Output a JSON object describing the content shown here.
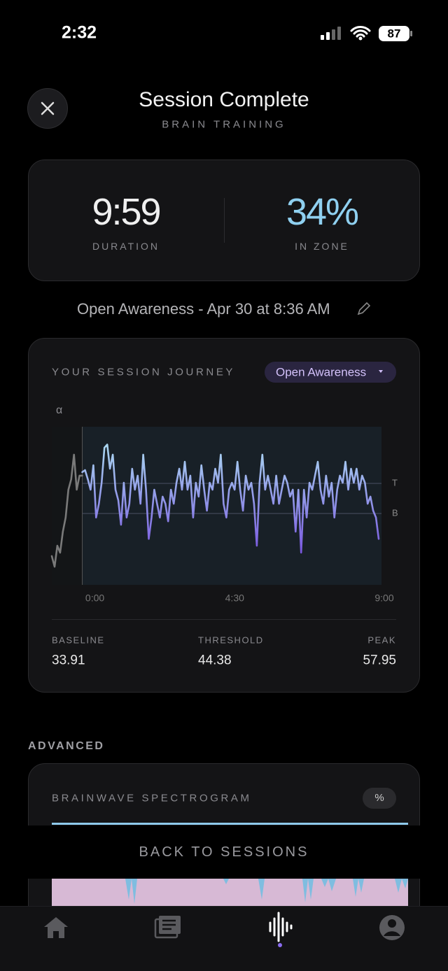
{
  "status_bar": {
    "time": "2:32",
    "battery": "87"
  },
  "header": {
    "title": "Session Complete",
    "subtitle": "BRAIN TRAINING"
  },
  "summary": {
    "duration": {
      "value": "9:59",
      "label": "DURATION"
    },
    "in_zone": {
      "value": "34%",
      "label": "IN ZONE"
    }
  },
  "session_info": "Open Awareness - Apr 30 at 8:36 AM",
  "journey": {
    "title": "YOUR SESSION JOURNEY",
    "mode": "Open Awareness",
    "stats": [
      {
        "label": "BASELINE",
        "value": 33.91
      },
      {
        "label": "THRESHOLD",
        "value": 44.38
      },
      {
        "label": "PEAK",
        "value": 57.95
      }
    ]
  },
  "chart_data": {
    "type": "line",
    "ylabel": "α",
    "threshold_label": "T",
    "baseline_label": "B",
    "xlim": [
      -55,
      540
    ],
    "ylim": [
      9.1,
      64.1
    ],
    "xticks": [
      {
        "value": 0,
        "label": "0:00"
      },
      {
        "value": 270,
        "label": "4:30"
      },
      {
        "value": 540,
        "label": "9:00"
      }
    ],
    "series": [
      {
        "color": "#7a7a7a",
        "x": [
          -55,
          -50,
          -45,
          -40,
          -35,
          -30,
          -25,
          -20,
          -15,
          -10,
          -5,
          0
        ],
        "values": [
          19.1,
          15.4,
          22.7,
          20.3,
          27.6,
          32.5,
          42.2,
          45.8,
          54.4,
          42.2,
          47.1,
          47.1
        ]
      },
      {
        "colors": [
          "#acdcf2",
          "#7a58e0"
        ],
        "x": [
          0,
          5,
          10,
          15,
          20,
          25,
          30,
          35,
          40,
          45,
          50,
          55,
          60,
          65,
          70,
          75,
          80,
          85,
          90,
          95,
          100,
          105,
          110,
          115,
          120,
          125,
          130,
          135,
          140,
          145,
          150,
          155,
          160,
          165,
          170,
          175,
          180,
          185,
          190,
          195,
          200,
          205,
          210,
          215,
          220,
          225,
          230,
          235,
          240,
          245,
          250,
          255,
          260,
          265,
          270,
          275,
          280,
          285,
          290,
          295,
          300,
          305,
          310,
          315,
          320,
          325,
          330,
          335,
          340,
          345,
          350,
          355,
          360,
          365,
          370,
          375,
          380,
          385,
          390,
          395,
          400,
          405,
          410,
          415,
          420,
          425,
          430,
          435,
          440,
          445,
          450,
          455,
          460,
          465,
          470,
          475,
          480,
          485,
          490,
          495,
          500,
          505,
          510,
          515,
          520,
          525,
          530,
          535
        ],
        "values": [
          48.3,
          49.0,
          45.8,
          42.2,
          50.7,
          32.5,
          37.3,
          44.6,
          56.8,
          57.9,
          49.5,
          54.4,
          42.2,
          38.5,
          30.0,
          44.6,
          32.5,
          37.3,
          49.5,
          42.2,
          47.1,
          37.3,
          54.4,
          42.2,
          25.1,
          32.5,
          42.2,
          37.3,
          32.5,
          39.8,
          37.3,
          31.2,
          42.2,
          37.3,
          44.6,
          49.5,
          42.2,
          51.9,
          42.2,
          47.1,
          32.5,
          44.6,
          39.8,
          50.7,
          42.2,
          34.9,
          44.6,
          42.2,
          49.5,
          44.6,
          54.4,
          37.3,
          32.5,
          42.2,
          44.6,
          42.2,
          51.9,
          42.2,
          34.9,
          47.1,
          42.2,
          44.6,
          37.3,
          22.7,
          44.6,
          54.4,
          42.2,
          47.1,
          42.2,
          37.3,
          47.1,
          37.3,
          42.2,
          47.1,
          44.6,
          39.8,
          42.2,
          27.6,
          42.2,
          20.3,
          42.2,
          32.5,
          44.6,
          42.2,
          47.1,
          51.9,
          42.2,
          37.3,
          47.1,
          39.8,
          44.6,
          32.5,
          42.2,
          47.1,
          44.6,
          51.9,
          42.2,
          49.5,
          44.6,
          49.5,
          42.2,
          47.1,
          44.6,
          37.3,
          39.8,
          34.9,
          32.5,
          25.1
        ]
      }
    ]
  },
  "advanced": {
    "title": "ADVANCED",
    "spectrogram_title": "BRAINWAVE SPECTROGRAM",
    "unit_toggle": "%"
  },
  "back_button": "BACK TO SESSIONS"
}
